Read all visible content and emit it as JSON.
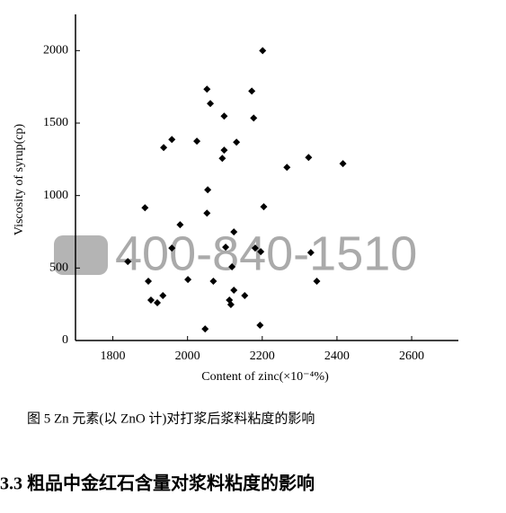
{
  "chart_data": {
    "type": "scatter",
    "xlabel": "Content of zinc(×10⁻⁴%)",
    "ylabel": "Viscosity of syrup(cp)",
    "x": [
      2201,
      2052,
      2172,
      2061,
      2098,
      2177,
      1958,
      2025,
      2131,
      1936,
      2098,
      2093,
      2324,
      2266,
      2416,
      2054,
      2204,
      1886,
      2052,
      1980,
      2124,
      2196,
      2181,
      2102,
      1958,
      1840,
      2330,
      2119,
      2001,
      2069,
      1895,
      2346,
      2124,
      1934,
      2153,
      1902,
      2112,
      1919,
      2116,
      2194,
      2047
    ],
    "values": [
      2000,
      1734,
      1721,
      1635,
      1548,
      1535,
      1387,
      1375,
      1368,
      1331,
      1313,
      1257,
      1263,
      1195,
      1220,
      1040,
      923,
      916,
      879,
      799,
      749,
      613,
      638,
      644,
      638,
      545,
      607,
      508,
      421,
      409,
      409,
      409,
      347,
      310,
      310,
      279,
      279,
      260,
      248,
      105,
      80
    ],
    "color": "#000000",
    "xlim": [
      1700,
      2725
    ],
    "xticks": [
      1800,
      2000,
      2200,
      2400,
      2600
    ],
    "ylim": [
      0,
      2250
    ],
    "yticks": [
      0,
      500,
      1000,
      1500,
      2000
    ],
    "grid": false
  },
  "watermark": "400-840-1510",
  "caption": "图 5  Zn 元素(以 ZnO 计)对打浆后浆料粘度的影响",
  "heading": "3.3  粗品中金红石含量对浆料粘度的影响"
}
